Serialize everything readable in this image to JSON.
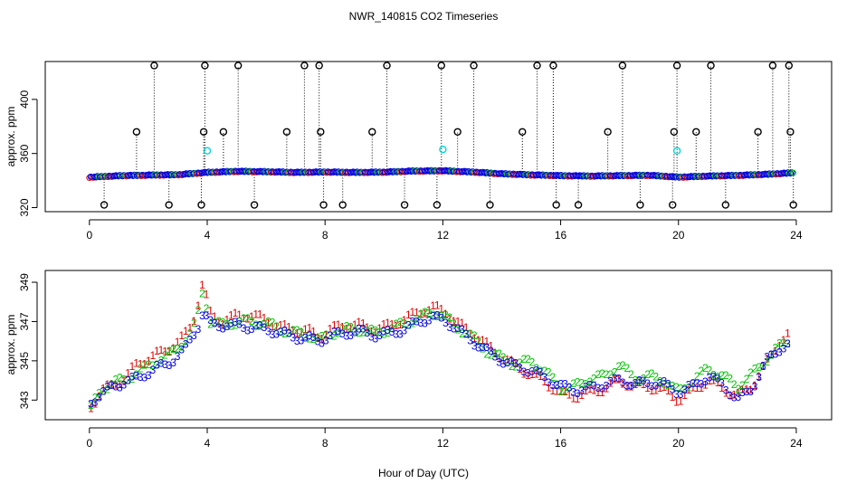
{
  "title": "NWR_140815  CO2 Timeseries",
  "xlabel": "Hour of Day (UTC)",
  "colors": {
    "ch1": "#e00000",
    "ch2": "#00c000",
    "ch3": "#0000e0",
    "flag": "#000000",
    "cyan": "#00d8d8",
    "base": "#0000e0"
  },
  "chart_data": [
    {
      "type": "scatter",
      "name": "top-panel",
      "ylabel": "approx. ppm",
      "xlim": [
        -1.5,
        25.2
      ],
      "ylim": [
        317,
        428
      ],
      "xticks": [
        0,
        4,
        8,
        12,
        16,
        20,
        24
      ],
      "yticks": [
        320,
        360,
        400
      ],
      "baseline_y": [
        [
          0,
          342.5
        ],
        [
          1,
          343.5
        ],
        [
          2,
          344
        ],
        [
          3,
          344.3
        ],
        [
          4,
          346
        ],
        [
          5,
          346.8
        ],
        [
          6,
          346.5
        ],
        [
          7,
          346
        ],
        [
          8,
          346.3
        ],
        [
          9,
          346
        ],
        [
          10,
          346.2
        ],
        [
          11,
          347
        ],
        [
          12,
          347.2
        ],
        [
          13,
          346.3
        ],
        [
          14,
          345
        ],
        [
          15,
          344.2
        ],
        [
          16,
          343.6
        ],
        [
          17,
          343.3
        ],
        [
          18,
          343.6
        ],
        [
          19,
          343.9
        ],
        [
          20,
          342.5
        ],
        [
          21,
          343.3
        ],
        [
          22,
          343.8
        ],
        [
          23,
          344.6
        ],
        [
          23.9,
          345.7
        ]
      ],
      "spikes": [
        {
          "x": 0.5,
          "y": 322
        },
        {
          "x": 1.6,
          "y": 376
        },
        {
          "x": 2.2,
          "y": 425
        },
        {
          "x": 2.7,
          "y": 322
        },
        {
          "x": 3.8,
          "y": 322
        },
        {
          "x": 3.88,
          "y": 376
        },
        {
          "x": 3.92,
          "y": 425
        },
        {
          "x": 4.55,
          "y": 376
        },
        {
          "x": 5.05,
          "y": 425
        },
        {
          "x": 5.6,
          "y": 322
        },
        {
          "x": 6.7,
          "y": 376
        },
        {
          "x": 7.3,
          "y": 425
        },
        {
          "x": 7.8,
          "y": 425
        },
        {
          "x": 7.85,
          "y": 376
        },
        {
          "x": 7.95,
          "y": 322
        },
        {
          "x": 8.6,
          "y": 322
        },
        {
          "x": 9.6,
          "y": 376
        },
        {
          "x": 10.1,
          "y": 425
        },
        {
          "x": 10.7,
          "y": 322
        },
        {
          "x": 11.8,
          "y": 322
        },
        {
          "x": 11.95,
          "y": 425
        },
        {
          "x": 12.5,
          "y": 376
        },
        {
          "x": 13.05,
          "y": 425
        },
        {
          "x": 13.6,
          "y": 322
        },
        {
          "x": 14.7,
          "y": 376
        },
        {
          "x": 15.2,
          "y": 425
        },
        {
          "x": 15.75,
          "y": 425
        },
        {
          "x": 15.85,
          "y": 322
        },
        {
          "x": 16.6,
          "y": 322
        },
        {
          "x": 17.6,
          "y": 376
        },
        {
          "x": 18.1,
          "y": 425
        },
        {
          "x": 18.7,
          "y": 322
        },
        {
          "x": 19.8,
          "y": 322
        },
        {
          "x": 19.85,
          "y": 376
        },
        {
          "x": 19.95,
          "y": 425
        },
        {
          "x": 20.6,
          "y": 376
        },
        {
          "x": 21.1,
          "y": 425
        },
        {
          "x": 21.6,
          "y": 322
        },
        {
          "x": 22.7,
          "y": 376
        },
        {
          "x": 23.2,
          "y": 425
        },
        {
          "x": 23.75,
          "y": 425
        },
        {
          "x": 23.8,
          "y": 376
        },
        {
          "x": 23.9,
          "y": 322
        }
      ],
      "cyan_points": [
        {
          "x": 4.0,
          "y": 362
        },
        {
          "x": 12.0,
          "y": 363
        },
        {
          "x": 19.95,
          "y": 362
        }
      ]
    },
    {
      "type": "scatter",
      "name": "bottom-panel",
      "ylabel": "approx. ppm",
      "xlim": [
        -1.5,
        25.2
      ],
      "ylim": [
        342.0,
        349.6
      ],
      "xticks": [
        0,
        4,
        8,
        12,
        16,
        20,
        24
      ],
      "yticks": [
        343,
        345,
        347,
        349
      ],
      "gaps": [
        [
          7.9,
          8.0
        ],
        [
          21.5,
          21.6
        ]
      ],
      "series": [
        {
          "name": "1",
          "label": "1",
          "offset": 0.35,
          "points": [
            [
              0.05,
              342.7
            ],
            [
              0.4,
              343.4
            ],
            [
              0.8,
              343.8
            ],
            [
              1.2,
              344.1
            ],
            [
              1.6,
              344.8
            ],
            [
              2.0,
              345.1
            ],
            [
              2.4,
              345.4
            ],
            [
              2.8,
              345.7
            ],
            [
              3.2,
              346.2
            ],
            [
              3.5,
              346.9
            ],
            [
              3.7,
              348.0
            ],
            [
              3.85,
              349.0
            ],
            [
              4.1,
              347.4
            ],
            [
              4.5,
              347.0
            ],
            [
              5.0,
              347.3
            ],
            [
              5.5,
              347.3
            ],
            [
              6.0,
              347.1
            ],
            [
              6.5,
              346.7
            ],
            [
              7.0,
              346.6
            ],
            [
              7.5,
              346.5
            ],
            [
              7.8,
              346.2
            ],
            [
              8.2,
              346.6
            ],
            [
              8.7,
              346.8
            ],
            [
              9.2,
              346.8
            ],
            [
              9.7,
              346.6
            ],
            [
              10.2,
              346.8
            ],
            [
              10.7,
              347.1
            ],
            [
              11.2,
              347.5
            ],
            [
              11.7,
              347.7
            ],
            [
              12.1,
              347.5
            ],
            [
              12.5,
              346.9
            ],
            [
              13.0,
              346.4
            ],
            [
              13.5,
              345.8
            ],
            [
              14.0,
              345.2
            ],
            [
              14.5,
              344.7
            ],
            [
              15.0,
              344.3
            ],
            [
              15.5,
              343.9
            ],
            [
              16.0,
              343.3
            ],
            [
              16.5,
              343.2
            ],
            [
              17.0,
              343.4
            ],
            [
              17.5,
              343.6
            ],
            [
              18.0,
              344.0
            ],
            [
              18.5,
              343.7
            ],
            [
              19.0,
              343.7
            ],
            [
              19.5,
              343.5
            ],
            [
              20.0,
              343.0
            ],
            [
              20.5,
              343.5
            ],
            [
              21.0,
              344.0
            ],
            [
              21.5,
              343.6
            ],
            [
              22.0,
              343.2
            ],
            [
              22.5,
              343.7
            ],
            [
              23.0,
              344.9
            ],
            [
              23.4,
              345.9
            ],
            [
              23.7,
              346.3
            ]
          ]
        },
        {
          "name": "2",
          "label": "2",
          "offset": 0.05,
          "points": [
            [
              0.05,
              342.6
            ],
            [
              0.4,
              343.5
            ],
            [
              0.8,
              343.9
            ],
            [
              1.2,
              344.0
            ],
            [
              1.6,
              344.4
            ],
            [
              2.0,
              344.7
            ],
            [
              2.4,
              345.1
            ],
            [
              2.8,
              345.4
            ],
            [
              3.2,
              346.0
            ],
            [
              3.5,
              346.5
            ],
            [
              3.7,
              347.5
            ],
            [
              3.85,
              348.6
            ],
            [
              4.1,
              347.0
            ],
            [
              4.5,
              346.8
            ],
            [
              5.0,
              347.0
            ],
            [
              5.5,
              347.0
            ],
            [
              6.0,
              346.9
            ],
            [
              6.5,
              346.6
            ],
            [
              7.0,
              346.4
            ],
            [
              7.5,
              346.3
            ],
            [
              7.8,
              346.0
            ],
            [
              8.2,
              346.4
            ],
            [
              8.7,
              346.6
            ],
            [
              9.2,
              346.6
            ],
            [
              9.7,
              346.4
            ],
            [
              10.2,
              346.6
            ],
            [
              10.7,
              346.9
            ],
            [
              11.2,
              347.2
            ],
            [
              11.7,
              347.5
            ],
            [
              12.1,
              347.2
            ],
            [
              12.5,
              346.7
            ],
            [
              13.0,
              346.2
            ],
            [
              13.5,
              345.5
            ],
            [
              14.0,
              345.1
            ],
            [
              14.5,
              344.8
            ],
            [
              15.0,
              345.0
            ],
            [
              15.5,
              344.4
            ],
            [
              16.0,
              343.6
            ],
            [
              16.5,
              343.7
            ],
            [
              17.0,
              344.1
            ],
            [
              17.5,
              344.2
            ],
            [
              18.0,
              344.8
            ],
            [
              18.5,
              344.1
            ],
            [
              19.0,
              344.2
            ],
            [
              19.5,
              344.0
            ],
            [
              20.0,
              343.4
            ],
            [
              20.5,
              344.0
            ],
            [
              21.0,
              344.6
            ],
            [
              21.5,
              344.2
            ],
            [
              22.0,
              343.7
            ],
            [
              22.5,
              344.3
            ],
            [
              23.0,
              345.1
            ],
            [
              23.4,
              345.7
            ],
            [
              23.7,
              346.0
            ]
          ]
        },
        {
          "name": "3",
          "label": "3",
          "offset": -0.3,
          "points": [
            [
              0.05,
              342.9
            ],
            [
              0.4,
              343.3
            ],
            [
              0.8,
              343.7
            ],
            [
              1.2,
              343.9
            ],
            [
              1.6,
              344.1
            ],
            [
              2.0,
              344.4
            ],
            [
              2.4,
              344.7
            ],
            [
              2.8,
              345.0
            ],
            [
              3.2,
              345.5
            ],
            [
              3.5,
              346.3
            ],
            [
              3.7,
              346.8
            ],
            [
              3.85,
              347.4
            ],
            [
              4.1,
              346.9
            ],
            [
              4.5,
              346.8
            ],
            [
              5.0,
              346.8
            ],
            [
              5.5,
              346.7
            ],
            [
              6.0,
              346.6
            ],
            [
              6.5,
              346.4
            ],
            [
              7.0,
              346.2
            ],
            [
              7.5,
              346.1
            ],
            [
              7.8,
              346.0
            ],
            [
              8.2,
              346.3
            ],
            [
              8.7,
              346.4
            ],
            [
              9.2,
              346.5
            ],
            [
              9.7,
              346.3
            ],
            [
              10.2,
              346.4
            ],
            [
              10.7,
              346.6
            ],
            [
              11.2,
              347.0
            ],
            [
              11.7,
              347.2
            ],
            [
              12.1,
              347.0
            ],
            [
              12.5,
              346.6
            ],
            [
              13.0,
              346.0
            ],
            [
              13.5,
              345.5
            ],
            [
              14.0,
              345.0
            ],
            [
              14.5,
              344.7
            ],
            [
              15.0,
              344.5
            ],
            [
              15.5,
              344.1
            ],
            [
              16.0,
              343.7
            ],
            [
              16.5,
              343.5
            ],
            [
              17.0,
              343.6
            ],
            [
              17.5,
              343.8
            ],
            [
              18.0,
              344.0
            ],
            [
              18.5,
              343.8
            ],
            [
              19.0,
              343.9
            ],
            [
              19.5,
              343.8
            ],
            [
              20.0,
              343.4
            ],
            [
              20.5,
              343.7
            ],
            [
              21.0,
              344.2
            ],
            [
              21.5,
              343.8
            ],
            [
              22.0,
              343.0
            ],
            [
              22.5,
              343.6
            ],
            [
              23.0,
              345.0
            ],
            [
              23.4,
              345.6
            ],
            [
              23.7,
              345.8
            ]
          ]
        }
      ]
    }
  ]
}
